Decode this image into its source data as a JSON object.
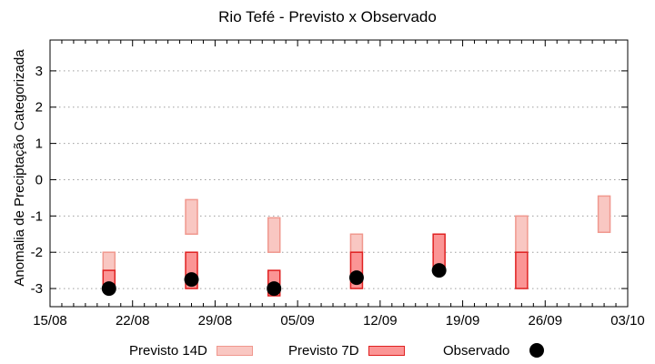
{
  "title": "Rio Tefé - Previsto x Observado",
  "axes": {
    "ylabel": "Anomalia de Preciptação Categorizada",
    "x_ticks": [
      "15/08",
      "22/08",
      "29/08",
      "05/09",
      "12/09",
      "19/09",
      "26/09",
      "03/10"
    ],
    "y_ticks": [
      -3,
      -2,
      -1,
      0,
      1,
      2,
      3
    ]
  },
  "legend": [
    {
      "label": "Previsto 14D",
      "type": "box"
    },
    {
      "label": "Previsto 7D",
      "type": "box"
    },
    {
      "label": "Observado",
      "type": "dot"
    }
  ],
  "colors": {
    "previsto_14d_fill": "#f9c7c2",
    "previsto_14d_border": "#f0988e",
    "previsto_7d_fill": "#fb9595",
    "previsto_7d_border": "#e02222",
    "observado": "#000000",
    "grid": "#9e9e9e",
    "axis": "#000000"
  },
  "chart_data": {
    "type": "bar",
    "subtype": "forecast-range-boxes-with-observed-points",
    "title": "Rio Tefé - Previsto x Observado",
    "xlabel": "",
    "ylabel": "Anomalia de Preciptação Categorizada",
    "x_dates": [
      "20/08",
      "27/08",
      "03/09",
      "10/09",
      "17/09",
      "24/09",
      "01/10"
    ],
    "day_offsets": [
      5,
      12,
      19,
      26,
      33,
      40,
      47
    ],
    "x_axis_start": "15/08",
    "x_axis_end": "03/10",
    "x_span_days": 49,
    "ylim": [
      -3.5,
      3.85
    ],
    "grid": "horizontal-dotted",
    "legend_position": "bottom",
    "series": [
      {
        "name": "Previsto 14D",
        "kind": "range",
        "ranges": [
          [
            -2.5,
            -2.0
          ],
          [
            -1.5,
            -0.55
          ],
          [
            -2.0,
            -1.05
          ],
          [
            -2.0,
            -1.5
          ],
          null,
          [
            -2.0,
            -1.0
          ],
          [
            -1.45,
            -0.45
          ]
        ]
      },
      {
        "name": "Previsto 7D",
        "kind": "range",
        "ranges": [
          [
            -3.0,
            -2.5
          ],
          [
            -3.0,
            -2.0
          ],
          [
            -3.2,
            -2.5
          ],
          [
            -3.0,
            -2.0
          ],
          [
            -2.4,
            -1.5
          ],
          [
            -3.0,
            -2.0
          ],
          null
        ]
      },
      {
        "name": "Observado",
        "kind": "scatter",
        "values": [
          -3.0,
          -2.75,
          -3.0,
          -2.7,
          -2.5,
          null,
          null
        ]
      }
    ]
  }
}
